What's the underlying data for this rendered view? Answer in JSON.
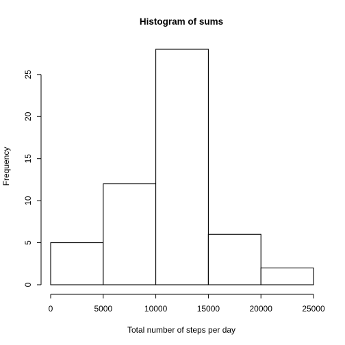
{
  "chart_data": {
    "type": "bar",
    "title": "Histogram of sums",
    "xlabel": "Total number of steps per day",
    "ylabel": "Frequency",
    "bins": [
      {
        "from": 0,
        "to": 5000,
        "count": 5
      },
      {
        "from": 5000,
        "to": 10000,
        "count": 12
      },
      {
        "from": 10000,
        "to": 15000,
        "count": 28
      },
      {
        "from": 15000,
        "to": 20000,
        "count": 6
      },
      {
        "from": 20000,
        "to": 25000,
        "count": 2
      }
    ],
    "xlim": [
      0,
      25000
    ],
    "ylim": [
      0,
      28
    ],
    "xticks": [
      0,
      5000,
      10000,
      15000,
      20000,
      25000
    ],
    "yticks": [
      0,
      5,
      10,
      15,
      20,
      25
    ],
    "grid": false,
    "legend": "none"
  }
}
